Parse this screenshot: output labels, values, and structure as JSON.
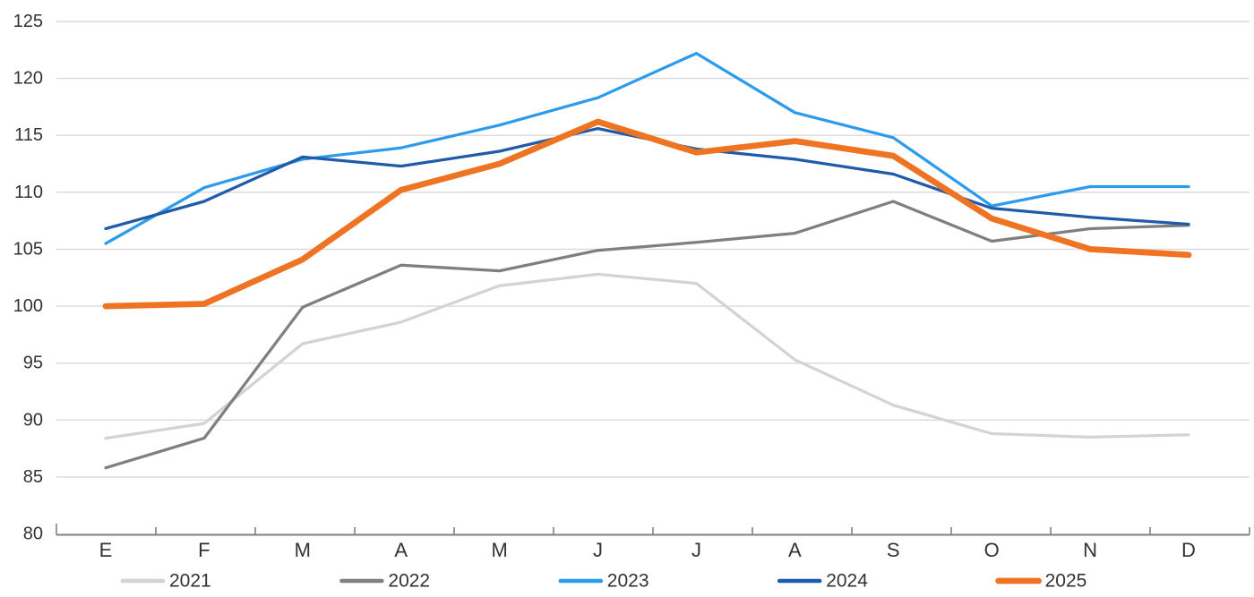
{
  "chart_data": {
    "type": "line",
    "title": "",
    "xlabel": "",
    "ylabel": "",
    "categories": [
      "E",
      "F",
      "M",
      "A",
      "M",
      "J",
      "J",
      "A",
      "S",
      "O",
      "N",
      "D"
    ],
    "y_ticks": [
      80,
      85,
      90,
      95,
      100,
      105,
      110,
      115,
      120,
      125
    ],
    "ylim": [
      80,
      125
    ],
    "grid": true,
    "legend_position": "bottom",
    "axis_color": "#808080",
    "gridline_color": "#D9D9D9",
    "label_color": "#333333",
    "series": [
      {
        "name": "2021",
        "color": "#D3D3D3",
        "width": 3.25,
        "values": [
          88.4,
          89.7,
          96.7,
          98.6,
          101.8,
          102.8,
          102.0,
          95.3,
          91.3,
          88.8,
          88.5,
          88.7
        ]
      },
      {
        "name": "2022",
        "color": "#7F7F7F",
        "width": 3.25,
        "values": [
          85.8,
          88.4,
          99.9,
          103.6,
          103.1,
          104.9,
          105.6,
          106.4,
          109.2,
          105.7,
          106.8,
          107.1
        ]
      },
      {
        "name": "2023",
        "color": "#2D9BEC",
        "width": 3.25,
        "values": [
          105.5,
          110.4,
          112.9,
          113.9,
          115.9,
          118.3,
          122.2,
          117.0,
          114.8,
          108.8,
          110.5,
          110.5
        ]
      },
      {
        "name": "2024",
        "color": "#1F5BA8",
        "width": 3.25,
        "values": [
          106.8,
          109.2,
          113.1,
          112.3,
          113.6,
          115.6,
          113.8,
          112.9,
          111.6,
          108.6,
          107.8,
          107.2
        ]
      },
      {
        "name": "2025",
        "color": "#EE7423",
        "width": 6.75,
        "values": [
          100.0,
          100.2,
          104.1,
          110.2,
          112.5,
          116.2,
          113.5,
          114.5,
          113.2,
          107.7,
          105.0,
          104.5
        ]
      }
    ]
  }
}
